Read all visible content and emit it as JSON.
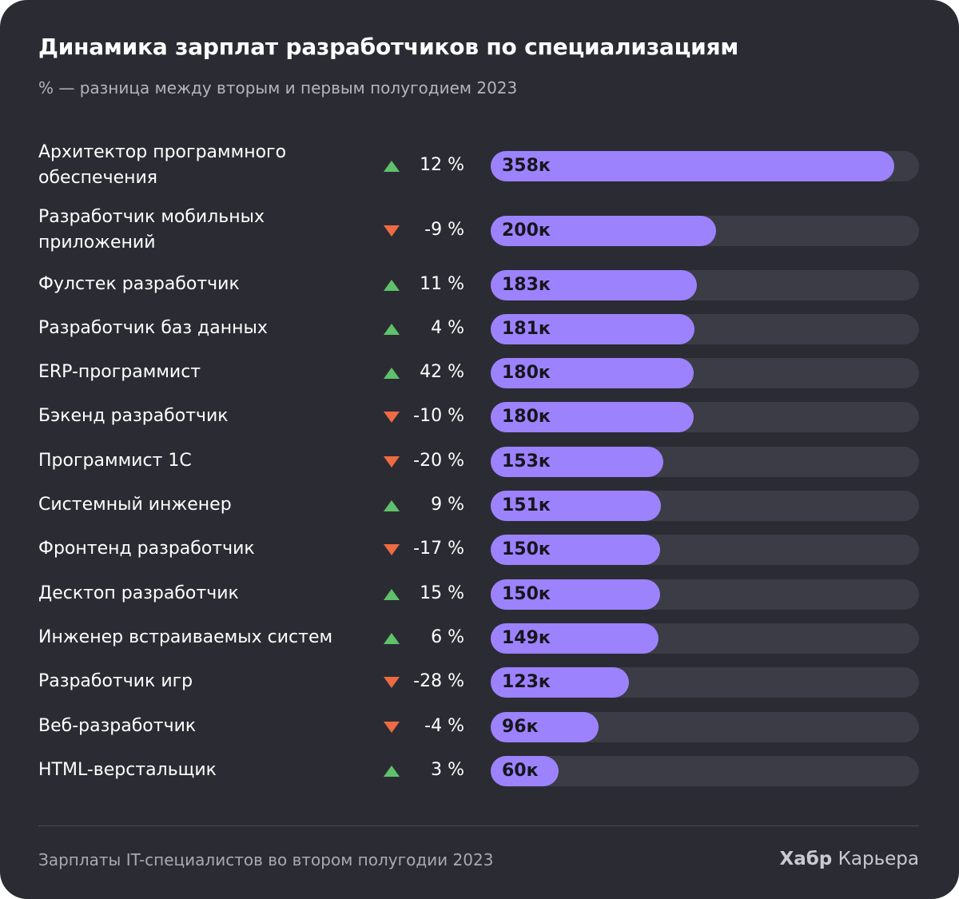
{
  "header": {
    "title": "Динамика зарплат разработчиков по специализациям",
    "subtitle": "% — разница между вторым и первым полугодием 2023"
  },
  "footer": {
    "note": "Зарплаты IT-специалистов во втором полугодии 2023",
    "brand_bold": "Хабр",
    "brand_rest": "Карьера"
  },
  "colors": {
    "background": "#2b2c33",
    "bar": "#9c82fd",
    "track": "#3b3c45",
    "up": "#5fc16a",
    "down": "#ee6a43"
  },
  "chart_data": {
    "type": "bar",
    "orientation": "horizontal",
    "title": "Динамика зарплат разработчиков по специализациям",
    "subtitle": "% — разница между вторым и первым полугодием 2023",
    "xlim": [
      0,
      380
    ],
    "categories": [
      "Архитектор программного обеспечения",
      "Разработчик мобильных приложений",
      "Фулстек разработчик",
      "Разработчик баз данных",
      "ERP-программист",
      "Бэкенд разработчик",
      "Программист 1С",
      "Системный инженер",
      "Фронтенд разработчик",
      "Десктоп разработчик",
      "Инженер встраиваемых систем",
      "Разработчик игр",
      "Веб-разработчик",
      "HTML-верстальщик"
    ],
    "series": [
      {
        "values": [
          358,
          200,
          183,
          181,
          180,
          180,
          153,
          151,
          150,
          150,
          149,
          123,
          96,
          60
        ]
      }
    ],
    "value_labels": [
      "358к",
      "200к",
      "183к",
      "181к",
      "180к",
      "180к",
      "153к",
      "151к",
      "150к",
      "150к",
      "149к",
      "123к",
      "96к",
      "60к"
    ],
    "change_pct": [
      12,
      -9,
      11,
      4,
      42,
      -10,
      -20,
      9,
      -17,
      15,
      6,
      -28,
      -4,
      3
    ],
    "change_labels": [
      "12 %",
      "-9 %",
      "11 %",
      "4 %",
      "42 %",
      "-10 %",
      "-20 %",
      "9 %",
      "-17 %",
      "15 %",
      "6 %",
      "-28 %",
      "-4 %",
      "3 %"
    ],
    "change_direction": [
      "up",
      "down",
      "up",
      "up",
      "up",
      "down",
      "down",
      "up",
      "down",
      "up",
      "up",
      "down",
      "down",
      "up"
    ],
    "grid": false,
    "legend": "none"
  }
}
